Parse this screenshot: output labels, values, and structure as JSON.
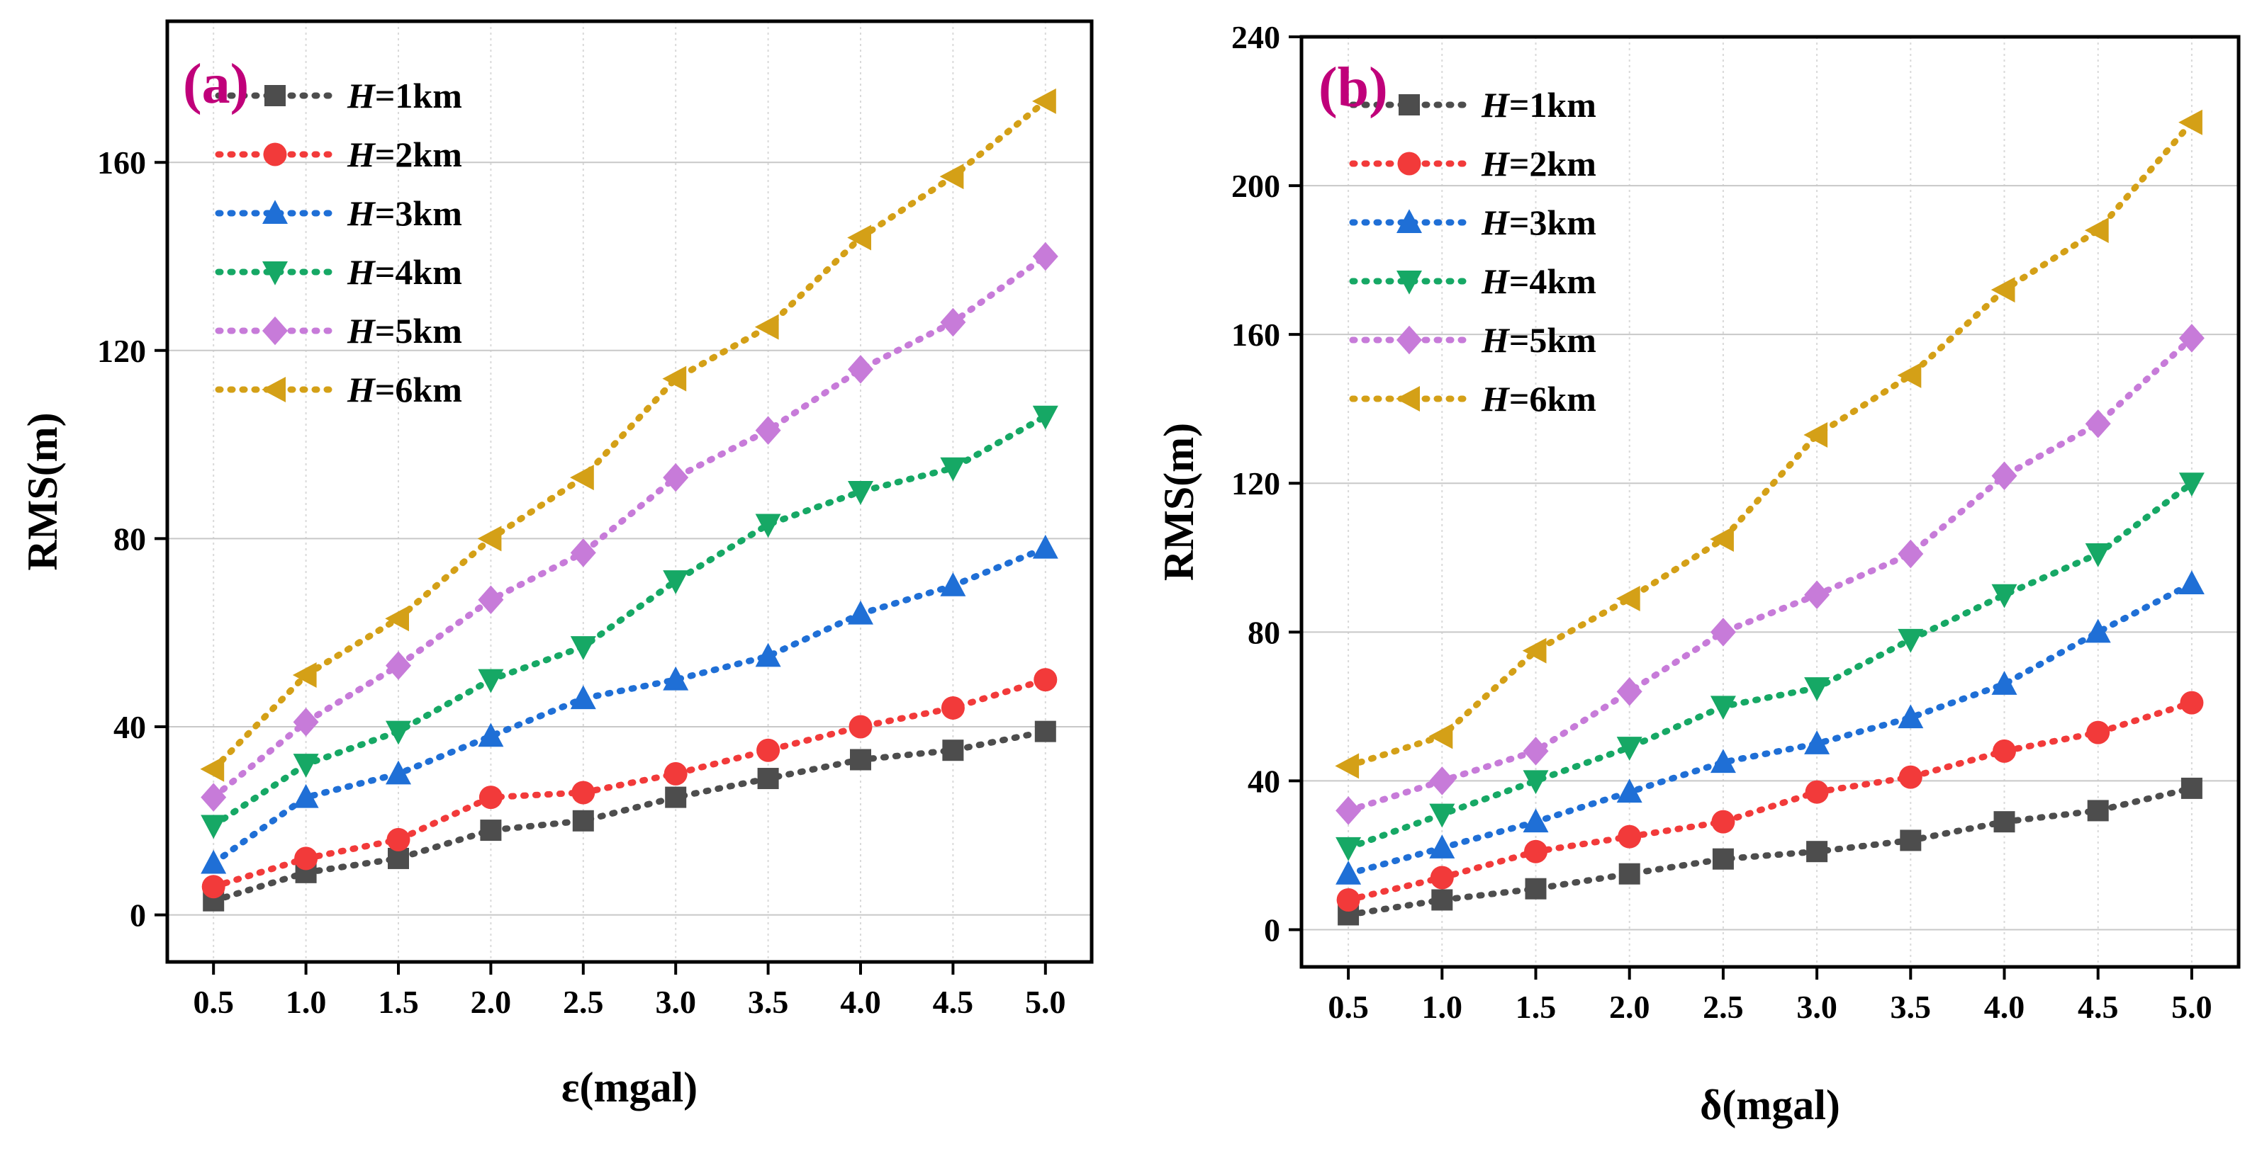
{
  "chart_data": [
    {
      "type": "line",
      "panel_label": "(a)",
      "xlabel": "ε(mgal)",
      "ylabel": "RMS(m)",
      "x": [
        0.5,
        1.0,
        1.5,
        2.0,
        2.5,
        3.0,
        3.5,
        4.0,
        4.5,
        5.0
      ],
      "x_tick_labels": [
        "0.5",
        "1.0",
        "1.5",
        "2.0",
        "2.5",
        "3.0",
        "3.5",
        "4.0",
        "4.5",
        "5.0"
      ],
      "xlim": [
        0.25,
        5.25
      ],
      "ylim": [
        -10,
        190
      ],
      "y_ticks": [
        0,
        40,
        80,
        120,
        160
      ],
      "y_tick_labels": [
        "0",
        "40",
        "80",
        "120",
        "160"
      ],
      "grid": true,
      "legend_position": "top-left",
      "series": [
        {
          "name_prefix": "H",
          "name_suffix": "=1km",
          "color": "#4d4d4d",
          "marker": "square",
          "values": [
            3,
            9,
            12,
            18,
            20,
            25,
            29,
            33,
            35,
            39
          ]
        },
        {
          "name_prefix": "H",
          "name_suffix": "=2km",
          "color": "#f23a3a",
          "marker": "circle",
          "values": [
            6,
            12,
            16,
            25,
            26,
            30,
            35,
            40,
            44,
            50
          ]
        },
        {
          "name_prefix": "H",
          "name_suffix": "=3km",
          "color": "#1f6fd6",
          "marker": "triangle-up",
          "values": [
            11,
            25,
            30,
            38,
            46,
            50,
            55,
            64,
            70,
            78
          ]
        },
        {
          "name_prefix": "H",
          "name_suffix": "=4km",
          "color": "#16a865",
          "marker": "triangle-down",
          "values": [
            19,
            32,
            39,
            50,
            57,
            71,
            83,
            90,
            95,
            106
          ]
        },
        {
          "name_prefix": "H",
          "name_suffix": "=5km",
          "color": "#c77bd9",
          "marker": "diamond",
          "values": [
            25,
            41,
            53,
            67,
            77,
            93,
            103,
            116,
            126,
            140
          ]
        },
        {
          "name_prefix": "H",
          "name_suffix": "=6km",
          "color": "#d4a017",
          "marker": "triangle-left",
          "values": [
            31,
            51,
            63,
            80,
            93,
            114,
            125,
            144,
            157,
            173
          ]
        }
      ]
    },
    {
      "type": "line",
      "panel_label": "(b)",
      "xlabel": "δ(mgal)",
      "ylabel": "RMS(m)",
      "x": [
        0.5,
        1.0,
        1.5,
        2.0,
        2.5,
        3.0,
        3.5,
        4.0,
        4.5,
        5.0
      ],
      "x_tick_labels": [
        "0.5",
        "1.0",
        "1.5",
        "2.0",
        "2.5",
        "3.0",
        "3.5",
        "4.0",
        "4.5",
        "5.0"
      ],
      "xlim": [
        0.25,
        5.25
      ],
      "ylim": [
        -10,
        240
      ],
      "y_ticks": [
        0,
        40,
        80,
        120,
        160,
        200,
        240
      ],
      "y_tick_labels": [
        "0",
        "40",
        "80",
        "120",
        "160",
        "200",
        "240"
      ],
      "grid": true,
      "legend_position": "top-left",
      "series": [
        {
          "name_prefix": "H",
          "name_suffix": "=1km",
          "color": "#4d4d4d",
          "marker": "square",
          "values": [
            4,
            8,
            11,
            15,
            19,
            21,
            24,
            29,
            32,
            38
          ]
        },
        {
          "name_prefix": "H",
          "name_suffix": "=2km",
          "color": "#f23a3a",
          "marker": "circle",
          "values": [
            8,
            14,
            21,
            25,
            29,
            37,
            41,
            48,
            53,
            61
          ]
        },
        {
          "name_prefix": "H",
          "name_suffix": "=3km",
          "color": "#1f6fd6",
          "marker": "triangle-up",
          "values": [
            15,
            22,
            29,
            37,
            45,
            50,
            57,
            66,
            80,
            93
          ]
        },
        {
          "name_prefix": "H",
          "name_suffix": "=4km",
          "color": "#16a865",
          "marker": "triangle-down",
          "values": [
            22,
            31,
            40,
            49,
            60,
            65,
            78,
            90,
            101,
            120
          ]
        },
        {
          "name_prefix": "H",
          "name_suffix": "=5km",
          "color": "#c77bd9",
          "marker": "diamond",
          "values": [
            32,
            40,
            48,
            64,
            80,
            90,
            101,
            122,
            136,
            159
          ]
        },
        {
          "name_prefix": "H",
          "name_suffix": "=6km",
          "color": "#d4a017",
          "marker": "triangle-left",
          "values": [
            44,
            52,
            75,
            89,
            105,
            133,
            149,
            172,
            188,
            217
          ]
        }
      ]
    }
  ]
}
